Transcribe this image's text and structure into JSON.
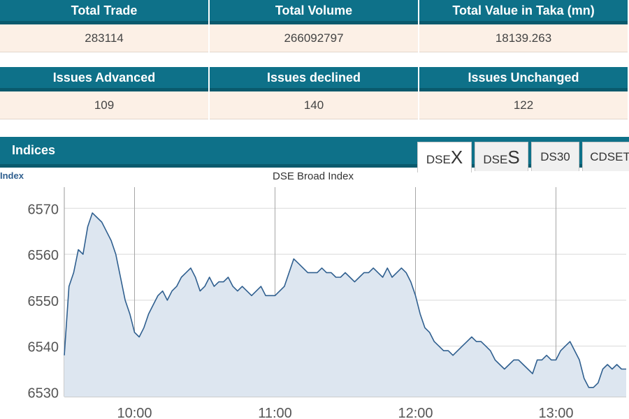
{
  "market_summary": {
    "headers": [
      "Total Trade",
      "Total Volume",
      "Total Value in Taka (mn)"
    ],
    "values": [
      "283114",
      "266092797",
      "18139.263"
    ]
  },
  "issues": {
    "headers": [
      "Issues Advanced",
      "Issues declined",
      "Issues Unchanged"
    ],
    "values": [
      "109",
      "140",
      "122"
    ]
  },
  "indices": {
    "title": "Indices",
    "tabs": [
      {
        "small": "DSE",
        "big": "X"
      },
      {
        "small": "DSE",
        "big": "S"
      },
      {
        "small": "DS30",
        "big": ""
      },
      {
        "small": "CDSET",
        "big": ""
      }
    ],
    "active_tab": 0
  },
  "chart_data": {
    "type": "area",
    "title": "DSE Broad Index",
    "ylabel": "Index",
    "xlabel": "",
    "x_ticks": [
      "10:00",
      "11:00",
      "12:00",
      "13:00"
    ],
    "y_ticks": [
      6530,
      6540,
      6550,
      6560,
      6570
    ],
    "xlim": [
      "09:30",
      "13:30"
    ],
    "ylim": [
      6529,
      6574
    ],
    "grid": true,
    "colors": {
      "line": "#2f5f8f",
      "fill": "#dde6f0"
    },
    "series": [
      {
        "x": [
          "09:30",
          "09:32",
          "09:34",
          "09:36",
          "09:38",
          "09:40",
          "09:42",
          "09:44",
          "09:46",
          "09:48",
          "09:50",
          "09:52",
          "09:54",
          "09:56",
          "09:58",
          "10:00",
          "10:02",
          "10:04",
          "10:06",
          "10:08",
          "10:10",
          "10:12",
          "10:14",
          "10:16",
          "10:18",
          "10:20",
          "10:22",
          "10:24",
          "10:26",
          "10:28",
          "10:30",
          "10:32",
          "10:34",
          "10:36",
          "10:38",
          "10:40",
          "10:42",
          "10:44",
          "10:46",
          "10:48",
          "10:50",
          "10:52",
          "10:54",
          "10:56",
          "10:58",
          "11:00",
          "11:02",
          "11:04",
          "11:06",
          "11:08",
          "11:10",
          "11:12",
          "11:14",
          "11:16",
          "11:18",
          "11:20",
          "11:22",
          "11:24",
          "11:26",
          "11:28",
          "11:30",
          "11:32",
          "11:34",
          "11:36",
          "11:38",
          "11:40",
          "11:42",
          "11:44",
          "11:46",
          "11:48",
          "11:50",
          "11:52",
          "11:54",
          "11:56",
          "11:58",
          "12:00",
          "12:02",
          "12:04",
          "12:06",
          "12:08",
          "12:10",
          "12:12",
          "12:14",
          "12:16",
          "12:18",
          "12:20",
          "12:22",
          "12:24",
          "12:26",
          "12:28",
          "12:30",
          "12:32",
          "12:34",
          "12:36",
          "12:38",
          "12:40",
          "12:42",
          "12:44",
          "12:46",
          "12:48",
          "12:50",
          "12:52",
          "12:54",
          "12:56",
          "12:58",
          "13:00",
          "13:02",
          "13:04",
          "13:06",
          "13:08",
          "13:10",
          "13:12",
          "13:14",
          "13:16",
          "13:18",
          "13:20",
          "13:22",
          "13:24",
          "13:26",
          "13:28",
          "13:30"
        ],
        "y": [
          6538,
          6553,
          6556,
          6561,
          6560,
          6566,
          6569,
          6568,
          6567,
          6565,
          6563,
          6560,
          6555,
          6550,
          6547,
          6543,
          6542,
          6544,
          6547,
          6549,
          6551,
          6552,
          6550,
          6552,
          6553,
          6555,
          6556,
          6557,
          6555,
          6552,
          6553,
          6555,
          6553,
          6554,
          6554,
          6555,
          6553,
          6552,
          6553,
          6552,
          6551,
          6552,
          6553,
          6551,
          6551,
          6551,
          6552,
          6553,
          6556,
          6559,
          6558,
          6557,
          6556,
          6556,
          6556,
          6557,
          6556,
          6556,
          6555,
          6555,
          6556,
          6555,
          6554,
          6555,
          6556,
          6556,
          6557,
          6556,
          6555,
          6557,
          6555,
          6556,
          6557,
          6556,
          6554,
          6551,
          6547,
          6544,
          6543,
          6541,
          6540,
          6539,
          6539,
          6538,
          6539,
          6540,
          6541,
          6542,
          6541,
          6541,
          6540,
          6539,
          6537,
          6536,
          6535,
          6536,
          6537,
          6537,
          6536,
          6535,
          6534,
          6537,
          6537,
          6538,
          6537,
          6537,
          6539,
          6540,
          6541,
          6539,
          6537,
          6533,
          6531,
          6531,
          6532,
          6535,
          6536,
          6535,
          6536,
          6535,
          6535
        ]
      }
    ]
  }
}
